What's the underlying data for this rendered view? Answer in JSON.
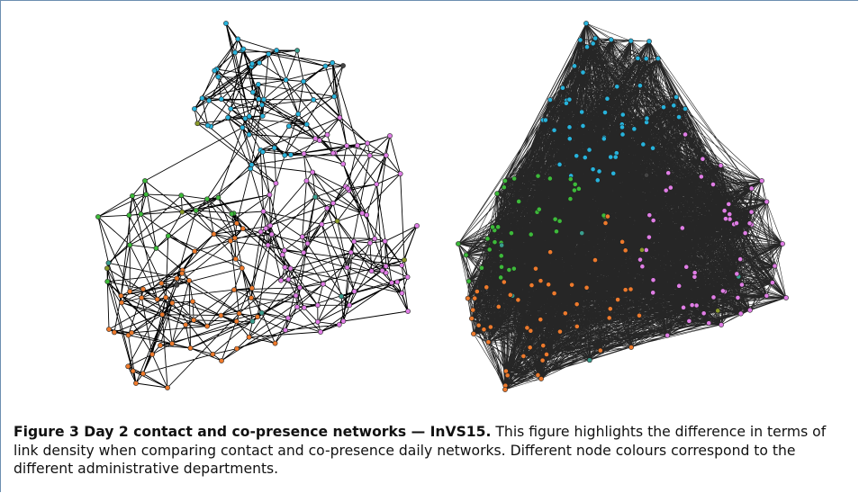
{
  "figure": {
    "label": "Figure 3",
    "title": "Day 2 contact and co-presence networks — InVS15.",
    "text": "This figure highlights the difference in terms of link density when comparing contact and co-presence daily networks. Different node colours correspond to the different administrative departments."
  }
}
